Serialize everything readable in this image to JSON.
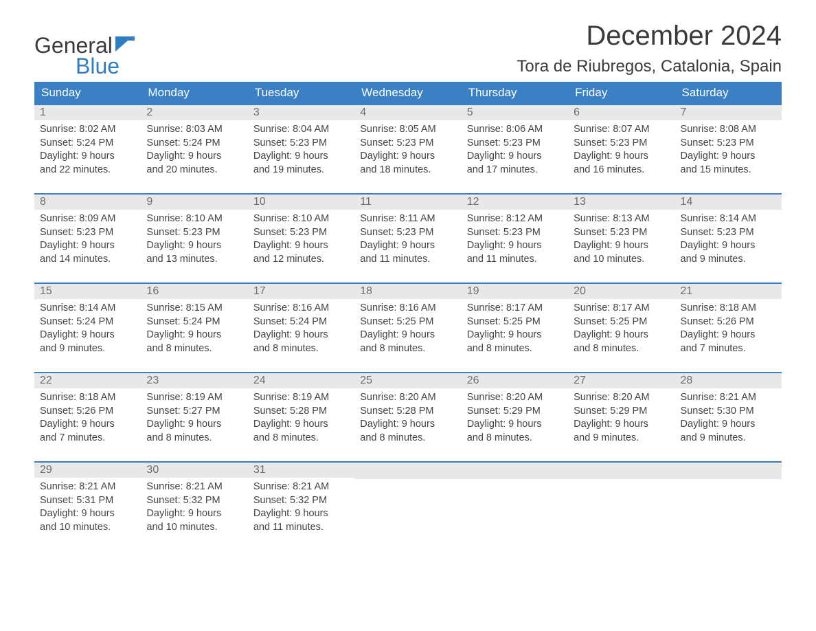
{
  "logo": {
    "line1": "General",
    "line2": "Blue"
  },
  "title": "December 2024",
  "location": "Tora de Riubregos, Catalonia, Spain",
  "colors": {
    "header_bg": "#3b7fc4",
    "header_text": "#ffffff",
    "daynum_bg": "#e8e8e8",
    "daynum_text": "#6d6d6d",
    "border": "#3b7fc4",
    "text": "#444444",
    "logo_blue": "#2f7ec2"
  },
  "day_labels": [
    "Sunday",
    "Monday",
    "Tuesday",
    "Wednesday",
    "Thursday",
    "Friday",
    "Saturday"
  ],
  "days": [
    {
      "n": "1",
      "sunrise": "Sunrise: 8:02 AM",
      "sunset": "Sunset: 5:24 PM",
      "d1": "Daylight: 9 hours",
      "d2": "and 22 minutes."
    },
    {
      "n": "2",
      "sunrise": "Sunrise: 8:03 AM",
      "sunset": "Sunset: 5:24 PM",
      "d1": "Daylight: 9 hours",
      "d2": "and 20 minutes."
    },
    {
      "n": "3",
      "sunrise": "Sunrise: 8:04 AM",
      "sunset": "Sunset: 5:23 PM",
      "d1": "Daylight: 9 hours",
      "d2": "and 19 minutes."
    },
    {
      "n": "4",
      "sunrise": "Sunrise: 8:05 AM",
      "sunset": "Sunset: 5:23 PM",
      "d1": "Daylight: 9 hours",
      "d2": "and 18 minutes."
    },
    {
      "n": "5",
      "sunrise": "Sunrise: 8:06 AM",
      "sunset": "Sunset: 5:23 PM",
      "d1": "Daylight: 9 hours",
      "d2": "and 17 minutes."
    },
    {
      "n": "6",
      "sunrise": "Sunrise: 8:07 AM",
      "sunset": "Sunset: 5:23 PM",
      "d1": "Daylight: 9 hours",
      "d2": "and 16 minutes."
    },
    {
      "n": "7",
      "sunrise": "Sunrise: 8:08 AM",
      "sunset": "Sunset: 5:23 PM",
      "d1": "Daylight: 9 hours",
      "d2": "and 15 minutes."
    },
    {
      "n": "8",
      "sunrise": "Sunrise: 8:09 AM",
      "sunset": "Sunset: 5:23 PM",
      "d1": "Daylight: 9 hours",
      "d2": "and 14 minutes."
    },
    {
      "n": "9",
      "sunrise": "Sunrise: 8:10 AM",
      "sunset": "Sunset: 5:23 PM",
      "d1": "Daylight: 9 hours",
      "d2": "and 13 minutes."
    },
    {
      "n": "10",
      "sunrise": "Sunrise: 8:10 AM",
      "sunset": "Sunset: 5:23 PM",
      "d1": "Daylight: 9 hours",
      "d2": "and 12 minutes."
    },
    {
      "n": "11",
      "sunrise": "Sunrise: 8:11 AM",
      "sunset": "Sunset: 5:23 PM",
      "d1": "Daylight: 9 hours",
      "d2": "and 11 minutes."
    },
    {
      "n": "12",
      "sunrise": "Sunrise: 8:12 AM",
      "sunset": "Sunset: 5:23 PM",
      "d1": "Daylight: 9 hours",
      "d2": "and 11 minutes."
    },
    {
      "n": "13",
      "sunrise": "Sunrise: 8:13 AM",
      "sunset": "Sunset: 5:23 PM",
      "d1": "Daylight: 9 hours",
      "d2": "and 10 minutes."
    },
    {
      "n": "14",
      "sunrise": "Sunrise: 8:14 AM",
      "sunset": "Sunset: 5:23 PM",
      "d1": "Daylight: 9 hours",
      "d2": "and 9 minutes."
    },
    {
      "n": "15",
      "sunrise": "Sunrise: 8:14 AM",
      "sunset": "Sunset: 5:24 PM",
      "d1": "Daylight: 9 hours",
      "d2": "and 9 minutes."
    },
    {
      "n": "16",
      "sunrise": "Sunrise: 8:15 AM",
      "sunset": "Sunset: 5:24 PM",
      "d1": "Daylight: 9 hours",
      "d2": "and 8 minutes."
    },
    {
      "n": "17",
      "sunrise": "Sunrise: 8:16 AM",
      "sunset": "Sunset: 5:24 PM",
      "d1": "Daylight: 9 hours",
      "d2": "and 8 minutes."
    },
    {
      "n": "18",
      "sunrise": "Sunrise: 8:16 AM",
      "sunset": "Sunset: 5:25 PM",
      "d1": "Daylight: 9 hours",
      "d2": "and 8 minutes."
    },
    {
      "n": "19",
      "sunrise": "Sunrise: 8:17 AM",
      "sunset": "Sunset: 5:25 PM",
      "d1": "Daylight: 9 hours",
      "d2": "and 8 minutes."
    },
    {
      "n": "20",
      "sunrise": "Sunrise: 8:17 AM",
      "sunset": "Sunset: 5:25 PM",
      "d1": "Daylight: 9 hours",
      "d2": "and 8 minutes."
    },
    {
      "n": "21",
      "sunrise": "Sunrise: 8:18 AM",
      "sunset": "Sunset: 5:26 PM",
      "d1": "Daylight: 9 hours",
      "d2": "and 7 minutes."
    },
    {
      "n": "22",
      "sunrise": "Sunrise: 8:18 AM",
      "sunset": "Sunset: 5:26 PM",
      "d1": "Daylight: 9 hours",
      "d2": "and 7 minutes."
    },
    {
      "n": "23",
      "sunrise": "Sunrise: 8:19 AM",
      "sunset": "Sunset: 5:27 PM",
      "d1": "Daylight: 9 hours",
      "d2": "and 8 minutes."
    },
    {
      "n": "24",
      "sunrise": "Sunrise: 8:19 AM",
      "sunset": "Sunset: 5:28 PM",
      "d1": "Daylight: 9 hours",
      "d2": "and 8 minutes."
    },
    {
      "n": "25",
      "sunrise": "Sunrise: 8:20 AM",
      "sunset": "Sunset: 5:28 PM",
      "d1": "Daylight: 9 hours",
      "d2": "and 8 minutes."
    },
    {
      "n": "26",
      "sunrise": "Sunrise: 8:20 AM",
      "sunset": "Sunset: 5:29 PM",
      "d1": "Daylight: 9 hours",
      "d2": "and 8 minutes."
    },
    {
      "n": "27",
      "sunrise": "Sunrise: 8:20 AM",
      "sunset": "Sunset: 5:29 PM",
      "d1": "Daylight: 9 hours",
      "d2": "and 9 minutes."
    },
    {
      "n": "28",
      "sunrise": "Sunrise: 8:21 AM",
      "sunset": "Sunset: 5:30 PM",
      "d1": "Daylight: 9 hours",
      "d2": "and 9 minutes."
    },
    {
      "n": "29",
      "sunrise": "Sunrise: 8:21 AM",
      "sunset": "Sunset: 5:31 PM",
      "d1": "Daylight: 9 hours",
      "d2": "and 10 minutes."
    },
    {
      "n": "30",
      "sunrise": "Sunrise: 8:21 AM",
      "sunset": "Sunset: 5:32 PM",
      "d1": "Daylight: 9 hours",
      "d2": "and 10 minutes."
    },
    {
      "n": "31",
      "sunrise": "Sunrise: 8:21 AM",
      "sunset": "Sunset: 5:32 PM",
      "d1": "Daylight: 9 hours",
      "d2": "and 11 minutes."
    }
  ]
}
